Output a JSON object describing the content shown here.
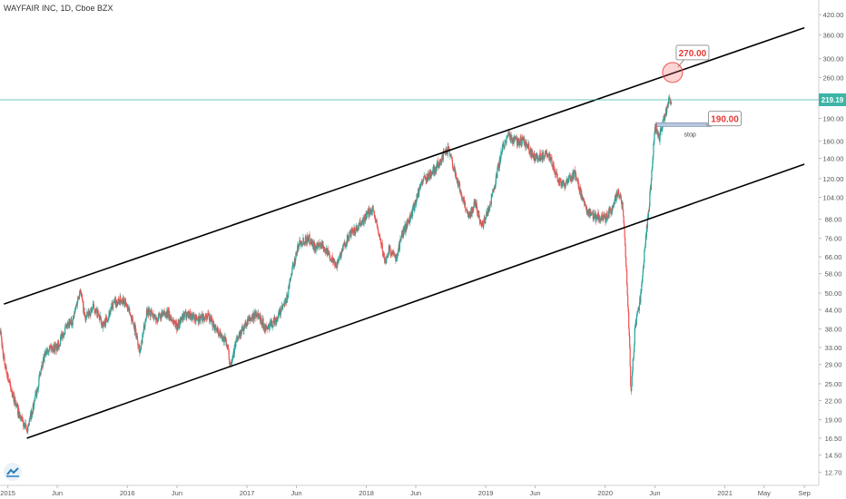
{
  "header": {
    "title": "WAYFAIR INC, 1D, Cboe BZX"
  },
  "colors": {
    "up": "#26a69a",
    "down": "#ef5350",
    "channel": "#000000",
    "hline": "#3cb4a6",
    "label_text": "#e53935",
    "axis_text": "#555555"
  },
  "chart_data": {
    "type": "candlestick",
    "title": "WAYFAIR INC, 1D, Cboe BZX",
    "y_scale": "log",
    "ylim": [
      11.5,
      470
    ],
    "xlim": [
      "2014-12-08",
      "2021-10-15"
    ],
    "y_ticks": [
      "420.00",
      "360.00",
      "300.00",
      "260.00",
      "219.19",
      "190.00",
      "160.00",
      "140.00",
      "120.00",
      "104.00",
      "88.00",
      "76.00",
      "66.00",
      "58.00",
      "50.00",
      "44.00",
      "38.00",
      "33.00",
      "29.00",
      "25.00",
      "22.00",
      "19.00",
      "16.50",
      "14.50",
      "12.70"
    ],
    "x_ticks": [
      {
        "label": "2015",
        "date": "2015-01-01"
      },
      {
        "label": "Jun",
        "date": "2015-06-01"
      },
      {
        "label": "2016",
        "date": "2016-01-01"
      },
      {
        "label": "Jun",
        "date": "2016-06-01"
      },
      {
        "label": "2017",
        "date": "2017-01-01"
      },
      {
        "label": "Jun",
        "date": "2017-06-01"
      },
      {
        "label": "2018",
        "date": "2018-01-01"
      },
      {
        "label": "Jun",
        "date": "2018-06-01"
      },
      {
        "label": "2019",
        "date": "2019-01-01"
      },
      {
        "label": "Jun",
        "date": "2019-06-01"
      },
      {
        "label": "2020",
        "date": "2020-01-01"
      },
      {
        "label": "Jun",
        "date": "2020-06-01"
      },
      {
        "label": "2021",
        "date": "2021-01-01"
      },
      {
        "label": "May",
        "date": "2021-05-01"
      },
      {
        "label": "Sep",
        "date": "2021-09-01"
      }
    ],
    "price_path": [
      [
        "2014-12-08",
        38
      ],
      [
        "2014-12-20",
        30
      ],
      [
        "2015-01-10",
        24
      ],
      [
        "2015-02-10",
        19
      ],
      [
        "2015-02-28",
        17.5
      ],
      [
        "2015-03-20",
        21
      ],
      [
        "2015-04-10",
        27
      ],
      [
        "2015-05-01",
        33
      ],
      [
        "2015-06-01",
        33
      ],
      [
        "2015-06-20",
        37
      ],
      [
        "2015-07-20",
        41
      ],
      [
        "2015-08-10",
        52
      ],
      [
        "2015-08-25",
        41
      ],
      [
        "2015-09-20",
        45
      ],
      [
        "2015-10-20",
        39
      ],
      [
        "2015-11-20",
        46
      ],
      [
        "2015-12-20",
        48
      ],
      [
        "2016-01-20",
        40
      ],
      [
        "2016-02-10",
        32
      ],
      [
        "2016-03-01",
        44
      ],
      [
        "2016-04-01",
        41
      ],
      [
        "2016-05-01",
        43
      ],
      [
        "2016-06-01",
        39
      ],
      [
        "2016-07-01",
        43
      ],
      [
        "2016-08-01",
        41
      ],
      [
        "2016-09-01",
        42
      ],
      [
        "2016-10-01",
        38
      ],
      [
        "2016-11-01",
        34
      ],
      [
        "2016-11-10",
        29
      ],
      [
        "2016-12-01",
        35
      ],
      [
        "2017-01-01",
        40
      ],
      [
        "2017-02-01",
        43
      ],
      [
        "2017-03-01",
        38
      ],
      [
        "2017-04-01",
        41
      ],
      [
        "2017-05-01",
        47
      ],
      [
        "2017-05-20",
        60
      ],
      [
        "2017-06-10",
        74
      ],
      [
        "2017-07-10",
        76
      ],
      [
        "2017-08-01",
        70
      ],
      [
        "2017-08-20",
        73
      ],
      [
        "2017-09-01",
        69
      ],
      [
        "2017-10-01",
        62
      ],
      [
        "2017-10-20",
        70
      ],
      [
        "2017-11-10",
        78
      ],
      [
        "2017-12-01",
        81
      ],
      [
        "2018-01-01",
        90
      ],
      [
        "2018-01-20",
        96
      ],
      [
        "2018-02-10",
        77
      ],
      [
        "2018-02-28",
        63
      ],
      [
        "2018-03-10",
        70
      ],
      [
        "2018-04-01",
        65
      ],
      [
        "2018-04-20",
        78
      ],
      [
        "2018-05-20",
        92
      ],
      [
        "2018-06-20",
        118
      ],
      [
        "2018-07-20",
        125
      ],
      [
        "2018-08-20",
        140
      ],
      [
        "2018-09-10",
        152
      ],
      [
        "2018-09-25",
        130
      ],
      [
        "2018-10-20",
        105
      ],
      [
        "2018-11-10",
        90
      ],
      [
        "2018-12-01",
        100
      ],
      [
        "2018-12-20",
        83
      ],
      [
        "2019-01-10",
        95
      ],
      [
        "2019-02-01",
        120
      ],
      [
        "2019-02-20",
        150
      ],
      [
        "2019-03-10",
        168
      ],
      [
        "2019-04-01",
        160
      ],
      [
        "2019-05-01",
        158
      ],
      [
        "2019-06-01",
        140
      ],
      [
        "2019-07-01",
        145
      ],
      [
        "2019-07-20",
        138
      ],
      [
        "2019-08-10",
        118
      ],
      [
        "2019-09-01",
        115
      ],
      [
        "2019-10-01",
        125
      ],
      [
        "2019-11-01",
        95
      ],
      [
        "2019-12-01",
        90
      ],
      [
        "2020-01-01",
        88
      ],
      [
        "2020-01-20",
        95
      ],
      [
        "2020-02-10",
        110
      ],
      [
        "2020-02-25",
        95
      ],
      [
        "2020-03-05",
        62
      ],
      [
        "2020-03-15",
        35
      ],
      [
        "2020-03-20",
        23
      ],
      [
        "2020-04-01",
        38
      ],
      [
        "2020-04-20",
        50
      ],
      [
        "2020-05-01",
        70
      ],
      [
        "2020-05-15",
        100
      ],
      [
        "2020-05-25",
        135
      ],
      [
        "2020-06-01",
        180
      ],
      [
        "2020-06-15",
        165
      ],
      [
        "2020-07-01",
        195
      ],
      [
        "2020-07-15",
        220
      ],
      [
        "2020-07-22",
        212
      ]
    ],
    "channel_upper": [
      [
        "2014-12-20",
        46
      ],
      [
        "2021-09-01",
        380
      ]
    ],
    "channel_lower": [
      [
        "2015-02-28",
        16.5
      ],
      [
        "2021-09-01",
        134
      ]
    ],
    "horizontal_line": 219.19,
    "annotations": [
      {
        "text": "270.00",
        "value": 270.0,
        "date": "2020-07-25"
      },
      {
        "text": "190.00",
        "value": 190.0,
        "date": "2020-07-10"
      },
      {
        "text": "stop",
        "value": 180,
        "date": "2020-07-25"
      }
    ],
    "grid": false,
    "legend": "none"
  }
}
